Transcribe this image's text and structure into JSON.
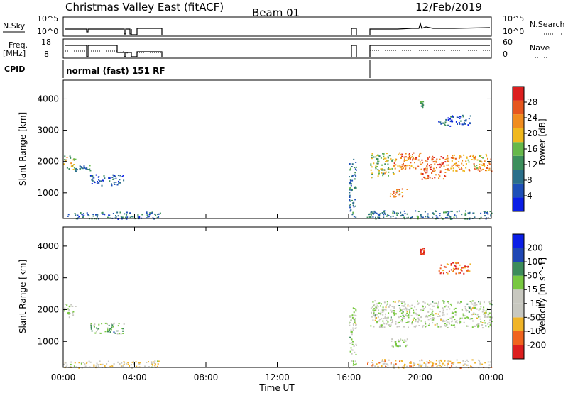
{
  "header": {
    "station": "Christmas Valley East (fitACF)",
    "beam": "Beam 01",
    "date": "12/Feb/2019"
  },
  "left_labels": {
    "nsky": "N.Sky",
    "freq_line1": "Freq.",
    "freq_line2": "[MHz]",
    "cpid": "CPID"
  },
  "right_labels": {
    "nsearch": "N.Search",
    "nave": "Nave"
  },
  "cpid_text": "normal (fast) 151 RF",
  "colors": {
    "power": [
      "#0a1ee6",
      "#1e4fb8",
      "#2a6f8a",
      "#3c8f5c",
      "#66b84a",
      "#f0b81e",
      "#f08c1e",
      "#e6561e",
      "#dc1e1e"
    ],
    "velocity": [
      "#dc1e1e",
      "#f0641e",
      "#f0b428",
      "#c8c8c0",
      "#c8c8c0",
      "#78c840",
      "#3c8c5a",
      "#1e46b4",
      "#0a1ee6"
    ],
    "gray": "#c8c8c0"
  },
  "chart_data": [
    {
      "type": "line",
      "name": "noise-panel",
      "left_axis_label": "N.Sky",
      "right_axis_label": "N.Search",
      "left_ticks": [
        "10^5",
        "10^0"
      ],
      "right_ticks": [
        "10^5",
        "10^0"
      ]
    },
    {
      "type": "line",
      "name": "freq-nave-panel",
      "left_axis_label": "Freq. [MHz]",
      "right_axis_label": "Nave",
      "left_ticks": [
        18,
        8
      ],
      "right_ticks": [
        60,
        0
      ]
    },
    {
      "type": "heatmap",
      "name": "power-panel",
      "ylabel": "Slant Range [km]",
      "yticks": [
        1000,
        2000,
        3000,
        4000
      ],
      "ylim": [
        180,
        4600
      ],
      "xlim": [
        0,
        24
      ],
      "colorbar": {
        "label": "Power [dB]",
        "ticks": [
          4,
          8,
          12,
          16,
          20,
          24,
          28
        ],
        "range": [
          0,
          32
        ]
      },
      "echo_regions": [
        {
          "t": [
            0.0,
            0.7
          ],
          "r": [
            1750,
            2200
          ],
          "level": 0.55
        },
        {
          "t": [
            0.6,
            1.5
          ],
          "r": [
            1700,
            1900
          ],
          "level": 0.3
        },
        {
          "t": [
            1.5,
            3.4
          ],
          "r": [
            1250,
            1600
          ],
          "level": 0.2
        },
        {
          "t": [
            0.0,
            5.5
          ],
          "r": [
            180,
            400
          ],
          "level": 0.25
        },
        {
          "t": [
            16.0,
            16.4
          ],
          "r": [
            180,
            2100
          ],
          "level": 0.3
        },
        {
          "t": [
            17.0,
            24.0
          ],
          "r": [
            180,
            450
          ],
          "level": 0.3
        },
        {
          "t": [
            17.2,
            18.5
          ],
          "r": [
            1500,
            2300
          ],
          "level": 0.5
        },
        {
          "t": [
            18.5,
            20.0
          ],
          "r": [
            1700,
            2300
          ],
          "level": 0.75
        },
        {
          "t": [
            20.0,
            21.5
          ],
          "r": [
            1450,
            2200
          ],
          "level": 0.85
        },
        {
          "t": [
            21.5,
            24.0
          ],
          "r": [
            1700,
            2250
          ],
          "level": 0.7
        },
        {
          "t": [
            18.3,
            19.3
          ],
          "r": [
            850,
            1150
          ],
          "level": 0.7
        },
        {
          "t": [
            21.0,
            22.8
          ],
          "r": [
            3150,
            3500
          ],
          "level": 0.2
        },
        {
          "t": [
            20.0,
            20.2
          ],
          "r": [
            3750,
            3950
          ],
          "level": 0.4
        }
      ]
    },
    {
      "type": "heatmap",
      "name": "velocity-panel",
      "ylabel": "Slant Range [km]",
      "yticks": [
        1000,
        2000,
        3000,
        4000
      ],
      "ylim": [
        180,
        4600
      ],
      "xlim": [
        0,
        24
      ],
      "xticks": [
        "00:00",
        "04:00",
        "08:00",
        "12:00",
        "16:00",
        "20:00",
        "00:00"
      ],
      "xlabel": "Time UT",
      "colorbar": {
        "label": "Velocity [m s^-1]",
        "ticks": [
          -200,
          -100,
          -50,
          -15,
          15,
          50,
          100,
          200
        ],
        "range": [
          -250,
          250
        ]
      },
      "echo_regions": [
        {
          "t": [
            0.0,
            0.7
          ],
          "r": [
            1750,
            2200
          ],
          "level": 0.5
        },
        {
          "t": [
            1.5,
            3.4
          ],
          "r": [
            1250,
            1600
          ],
          "level": 0.63
        },
        {
          "t": [
            0.0,
            5.5
          ],
          "r": [
            180,
            400
          ],
          "level": 0.4
        },
        {
          "t": [
            16.0,
            16.4
          ],
          "r": [
            180,
            2100
          ],
          "level": 0.5
        },
        {
          "t": [
            17.0,
            24.0
          ],
          "r": [
            180,
            450
          ],
          "level": 0.3
        },
        {
          "t": [
            17.2,
            24.0
          ],
          "r": [
            1450,
            2300
          ],
          "level": 0.5
        },
        {
          "t": [
            18.3,
            19.3
          ],
          "r": [
            850,
            1150
          ],
          "level": 0.5
        },
        {
          "t": [
            21.0,
            22.8
          ],
          "r": [
            3150,
            3500
          ],
          "level": 0.12
        },
        {
          "t": [
            20.0,
            20.2
          ],
          "r": [
            3750,
            3950
          ],
          "level": 0.05
        }
      ]
    }
  ]
}
